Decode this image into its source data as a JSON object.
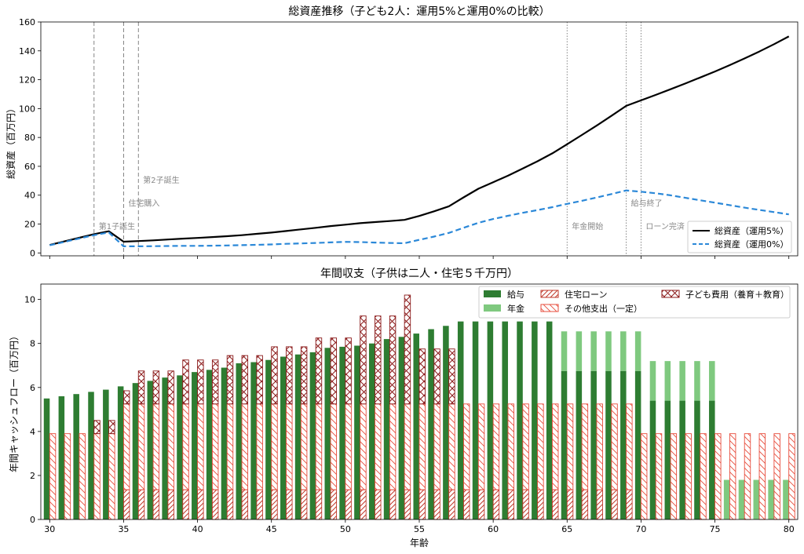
{
  "colors": {
    "asset5": "#000000",
    "asset0": "#2b88d8",
    "salary": "#2e7d32",
    "pension": "#7fc97f",
    "loan": "#c0392b",
    "other": "#e74c3c",
    "child": "#8b1a1a",
    "vline": "#777777",
    "annot": "#888888"
  },
  "chart_data": [
    {
      "type": "line",
      "title": "総資産推移（子ども2人：運用5%と運用0%の比較）",
      "xlabel": "",
      "ylabel": "総資産（百万円）",
      "xlim": [
        29.4,
        80.6
      ],
      "ylim": [
        -2,
        160
      ],
      "yticks": [
        0,
        20,
        40,
        60,
        80,
        100,
        120,
        140,
        160
      ],
      "xticks": [
        30,
        35,
        40,
        45,
        50,
        55,
        60,
        65,
        70,
        75,
        80
      ],
      "legend_position": "lower-right",
      "series": [
        {
          "name": "総資産（運用5%）",
          "style": "solid",
          "x": [
            30,
            31,
            32,
            33,
            34,
            35,
            36,
            37,
            38,
            39,
            40,
            41,
            42,
            43,
            44,
            45,
            46,
            47,
            48,
            49,
            50,
            51,
            52,
            53,
            54,
            55,
            56,
            57,
            58,
            59,
            60,
            61,
            62,
            63,
            64,
            65,
            66,
            67,
            68,
            69,
            70,
            71,
            72,
            73,
            74,
            75,
            76,
            77,
            78,
            79,
            80
          ],
          "y": [
            5.5,
            8,
            10.5,
            13,
            15,
            7.8,
            8.2,
            8.7,
            9.3,
            9.9,
            10.4,
            11,
            11.6,
            12.3,
            13.2,
            14.1,
            15.2,
            16.3,
            17.4,
            18.6,
            19.6,
            20.6,
            21.4,
            22.1,
            22.9,
            25.6,
            28.8,
            32.3,
            38.5,
            44.5,
            49,
            53.5,
            58.5,
            63.5,
            69,
            75.3,
            81.7,
            88.2,
            95,
            101.9,
            105.7,
            109.5,
            113.4,
            117.4,
            121.5,
            125.7,
            130.1,
            134.7,
            139.5,
            144.6,
            150
          ]
        },
        {
          "name": "総資産（運用0%）",
          "style": "dashed",
          "x": [
            30,
            31,
            32,
            33,
            34,
            35,
            36,
            37,
            38,
            39,
            40,
            41,
            42,
            43,
            44,
            45,
            46,
            47,
            48,
            49,
            50,
            51,
            52,
            53,
            54,
            55,
            56,
            57,
            58,
            59,
            60,
            61,
            62,
            63,
            64,
            65,
            66,
            67,
            68,
            69,
            70,
            71,
            72,
            73,
            74,
            75,
            76,
            77,
            78,
            79,
            80
          ],
          "y": [
            5.3,
            7.6,
            10,
            12.3,
            14.2,
            4.6,
            4.6,
            4.7,
            4.8,
            4.9,
            4.9,
            5,
            5.2,
            5.4,
            5.6,
            5.9,
            6.3,
            6.6,
            6.9,
            7.3,
            7.7,
            7.5,
            7.2,
            6.9,
            6.7,
            9.1,
            11.3,
            13.9,
            17.4,
            20.9,
            23.5,
            25.7,
            27.8,
            29.7,
            31.7,
            34,
            36.1,
            38.4,
            40.8,
            43.3,
            42.4,
            41.3,
            39.9,
            38.2,
            36.5,
            34.8,
            33.1,
            31.4,
            29.8,
            28.3,
            26.7
          ]
        }
      ],
      "events": [
        {
          "x": 33,
          "label": "第1子誕生",
          "style": "dashed",
          "label_y": 16.5
        },
        {
          "x": 35,
          "label": "住宅購入",
          "style": "dashed",
          "label_y": 32.5
        },
        {
          "x": 36,
          "label": "第2子誕生",
          "style": "dashed",
          "label_y": 48.5
        },
        {
          "x": 65,
          "label": "年金開始",
          "style": "dotted",
          "label_y": 16.5
        },
        {
          "x": 69,
          "label": "給与終了",
          "style": "dotted",
          "label_y": 32.5
        },
        {
          "x": 70,
          "label": "ローン完済",
          "style": "dotted",
          "label_y": 16.5
        }
      ]
    },
    {
      "type": "bar",
      "title": "年間収支（子供は二人・住宅５千万円）",
      "xlabel": "年齢",
      "ylabel": "年間キャッシュフロー（百万円）",
      "xlim": [
        29.4,
        80.6
      ],
      "ylim": [
        0,
        10.7
      ],
      "yticks": [
        0,
        2,
        4,
        6,
        8,
        10
      ],
      "xticks": [
        30,
        35,
        40,
        45,
        50,
        55,
        60,
        65,
        70,
        75,
        80
      ],
      "legend_position": "top-right",
      "ages": [
        30,
        31,
        32,
        33,
        34,
        35,
        36,
        37,
        38,
        39,
        40,
        41,
        42,
        43,
        44,
        45,
        46,
        47,
        48,
        49,
        50,
        51,
        52,
        53,
        54,
        55,
        56,
        57,
        58,
        59,
        60,
        61,
        62,
        63,
        64,
        65,
        66,
        67,
        68,
        69,
        70,
        71,
        72,
        73,
        74,
        75,
        76,
        77,
        78,
        79,
        80
      ],
      "series": [
        {
          "name": "給与",
          "group": "income",
          "pattern": "solid",
          "values": [
            5.5,
            5.6,
            5.7,
            5.8,
            5.9,
            6.05,
            6.2,
            6.3,
            6.45,
            6.55,
            6.7,
            6.8,
            6.9,
            7.1,
            7.15,
            7.25,
            7.4,
            7.5,
            7.6,
            7.8,
            7.85,
            7.9,
            8,
            8.2,
            8.3,
            8.45,
            8.65,
            8.8,
            9,
            9,
            9,
            9,
            9,
            9,
            9,
            6.75,
            6.75,
            6.75,
            6.75,
            6.75,
            6.75,
            5.4,
            5.4,
            5.4,
            5.4,
            5.4,
            0,
            0,
            0,
            0,
            0
          ]
        },
        {
          "name": "年金",
          "group": "income",
          "pattern": "solid",
          "values": [
            0,
            0,
            0,
            0,
            0,
            0,
            0,
            0,
            0,
            0,
            0,
            0,
            0,
            0,
            0,
            0,
            0,
            0,
            0,
            0,
            0,
            0,
            0,
            0,
            0,
            0,
            0,
            0,
            0,
            0,
            0,
            0,
            0,
            0,
            0,
            1.8,
            1.8,
            1.8,
            1.8,
            1.8,
            1.8,
            1.8,
            1.8,
            1.8,
            1.8,
            1.8,
            1.8,
            1.8,
            1.8,
            1.8,
            1.8
          ]
        },
        {
          "name": "住宅ローン",
          "group": "expense",
          "pattern": "diag",
          "values": [
            0,
            0,
            0,
            0,
            0,
            1.35,
            1.35,
            1.35,
            1.35,
            1.35,
            1.35,
            1.35,
            1.35,
            1.35,
            1.35,
            1.35,
            1.35,
            1.35,
            1.35,
            1.35,
            1.35,
            1.35,
            1.35,
            1.35,
            1.35,
            1.35,
            1.35,
            1.35,
            1.35,
            1.35,
            1.35,
            1.35,
            1.35,
            1.35,
            1.35,
            1.35,
            1.35,
            1.35,
            1.35,
            1.35,
            0,
            0,
            0,
            0,
            0,
            0,
            0,
            0,
            0,
            0,
            0
          ]
        },
        {
          "name": "その他支出（一定）",
          "group": "expense",
          "pattern": "back",
          "values": [
            3.9,
            3.9,
            3.9,
            3.9,
            3.9,
            3.9,
            3.9,
            3.9,
            3.9,
            3.9,
            3.9,
            3.9,
            3.9,
            3.9,
            3.9,
            3.9,
            3.9,
            3.9,
            3.9,
            3.9,
            3.9,
            3.9,
            3.9,
            3.9,
            3.9,
            3.9,
            3.9,
            3.9,
            3.9,
            3.9,
            3.9,
            3.9,
            3.9,
            3.9,
            3.9,
            3.9,
            3.9,
            3.9,
            3.9,
            3.9,
            3.9,
            3.9,
            3.9,
            3.9,
            3.9,
            3.9,
            3.9,
            3.9,
            3.9,
            3.9,
            3.9
          ]
        },
        {
          "name": "子ども費用（養育＋教育）",
          "group": "expense",
          "pattern": "cross",
          "values": [
            0,
            0,
            0,
            0.6,
            0.6,
            0.6,
            1.5,
            1.5,
            1.5,
            2,
            2,
            2,
            2.2,
            2.2,
            2.2,
            2.6,
            2.6,
            2.6,
            3,
            3,
            3,
            4,
            4,
            4,
            4.95,
            2.5,
            2.5,
            2.5,
            0,
            0,
            0,
            0,
            0,
            0,
            0,
            0,
            0,
            0,
            0,
            0,
            0,
            0,
            0,
            0,
            0,
            0,
            0,
            0,
            0,
            0,
            0
          ]
        }
      ]
    }
  ]
}
